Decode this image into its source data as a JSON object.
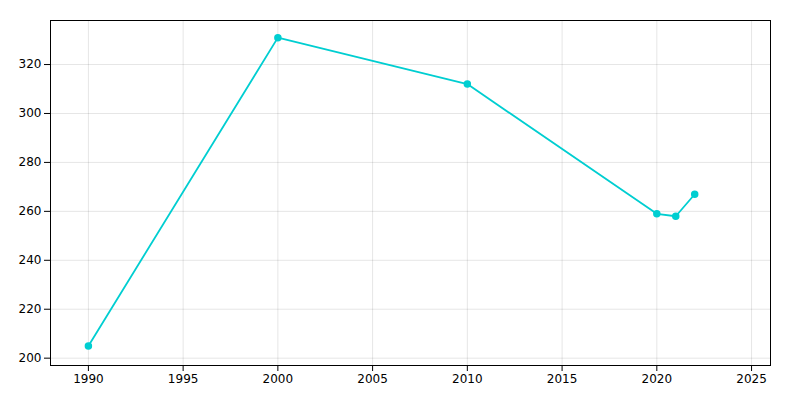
{
  "chart_data": {
    "type": "line",
    "x": [
      1990,
      2000,
      2010,
      2020,
      2021,
      2022
    ],
    "values": [
      205,
      331,
      312,
      259,
      258,
      267
    ],
    "color": "#00CED1",
    "marker": "circle",
    "xlim": [
      1988,
      2026
    ],
    "xticks": [
      1990,
      1995,
      2000,
      2005,
      2010,
      2015,
      2020,
      2025
    ],
    "ylim": [
      197,
      338
    ],
    "yticks": [
      200,
      220,
      240,
      260,
      280,
      300,
      320
    ],
    "grid": true
  }
}
